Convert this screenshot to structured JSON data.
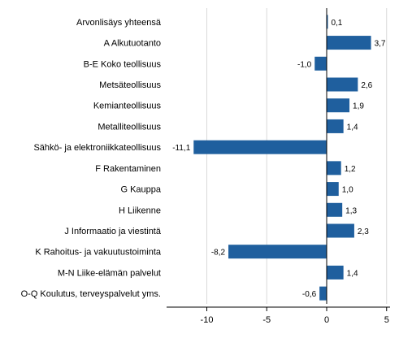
{
  "chart_data": {
    "type": "bar",
    "orientation": "horizontal",
    "categories": [
      "Arvonlisäys yhteensä",
      "A Alkutuotanto",
      "B-E Koko teollisuus",
      "Metsäteollisuus",
      "Kemianteollisuus",
      "Metalliteollisuus",
      "Sähkö- ja elektroniikkateollisuus",
      "F Rakentaminen",
      "G Kauppa",
      "H Liikenne",
      "J Informaatio ja viestintä",
      "K Rahoitus- ja vakuutustoiminta",
      "M-N Liike-elämän palvelut",
      "O-Q Koulutus, terveyspalvelut yms."
    ],
    "values": [
      0.1,
      3.7,
      -1.0,
      2.6,
      1.9,
      1.4,
      -11.1,
      1.2,
      1.0,
      1.3,
      2.3,
      -8.2,
      1.4,
      -0.6
    ],
    "value_labels": [
      "0,1",
      "3,7",
      "-1,0",
      "2,6",
      "1,9",
      "1,4",
      "-11,1",
      "1,2",
      "1,0",
      "1,3",
      "2,3",
      "-8,2",
      "1,4",
      "-0,6"
    ],
    "xlim": [
      -13.5,
      5.2
    ],
    "x_ticks": [
      -10,
      -5,
      0,
      5
    ],
    "x_tick_labels": [
      "-10",
      "-5",
      "0",
      "5"
    ],
    "grid": true,
    "bar_color": "#1f5f9e",
    "title": "",
    "xlabel": "",
    "ylabel": ""
  }
}
